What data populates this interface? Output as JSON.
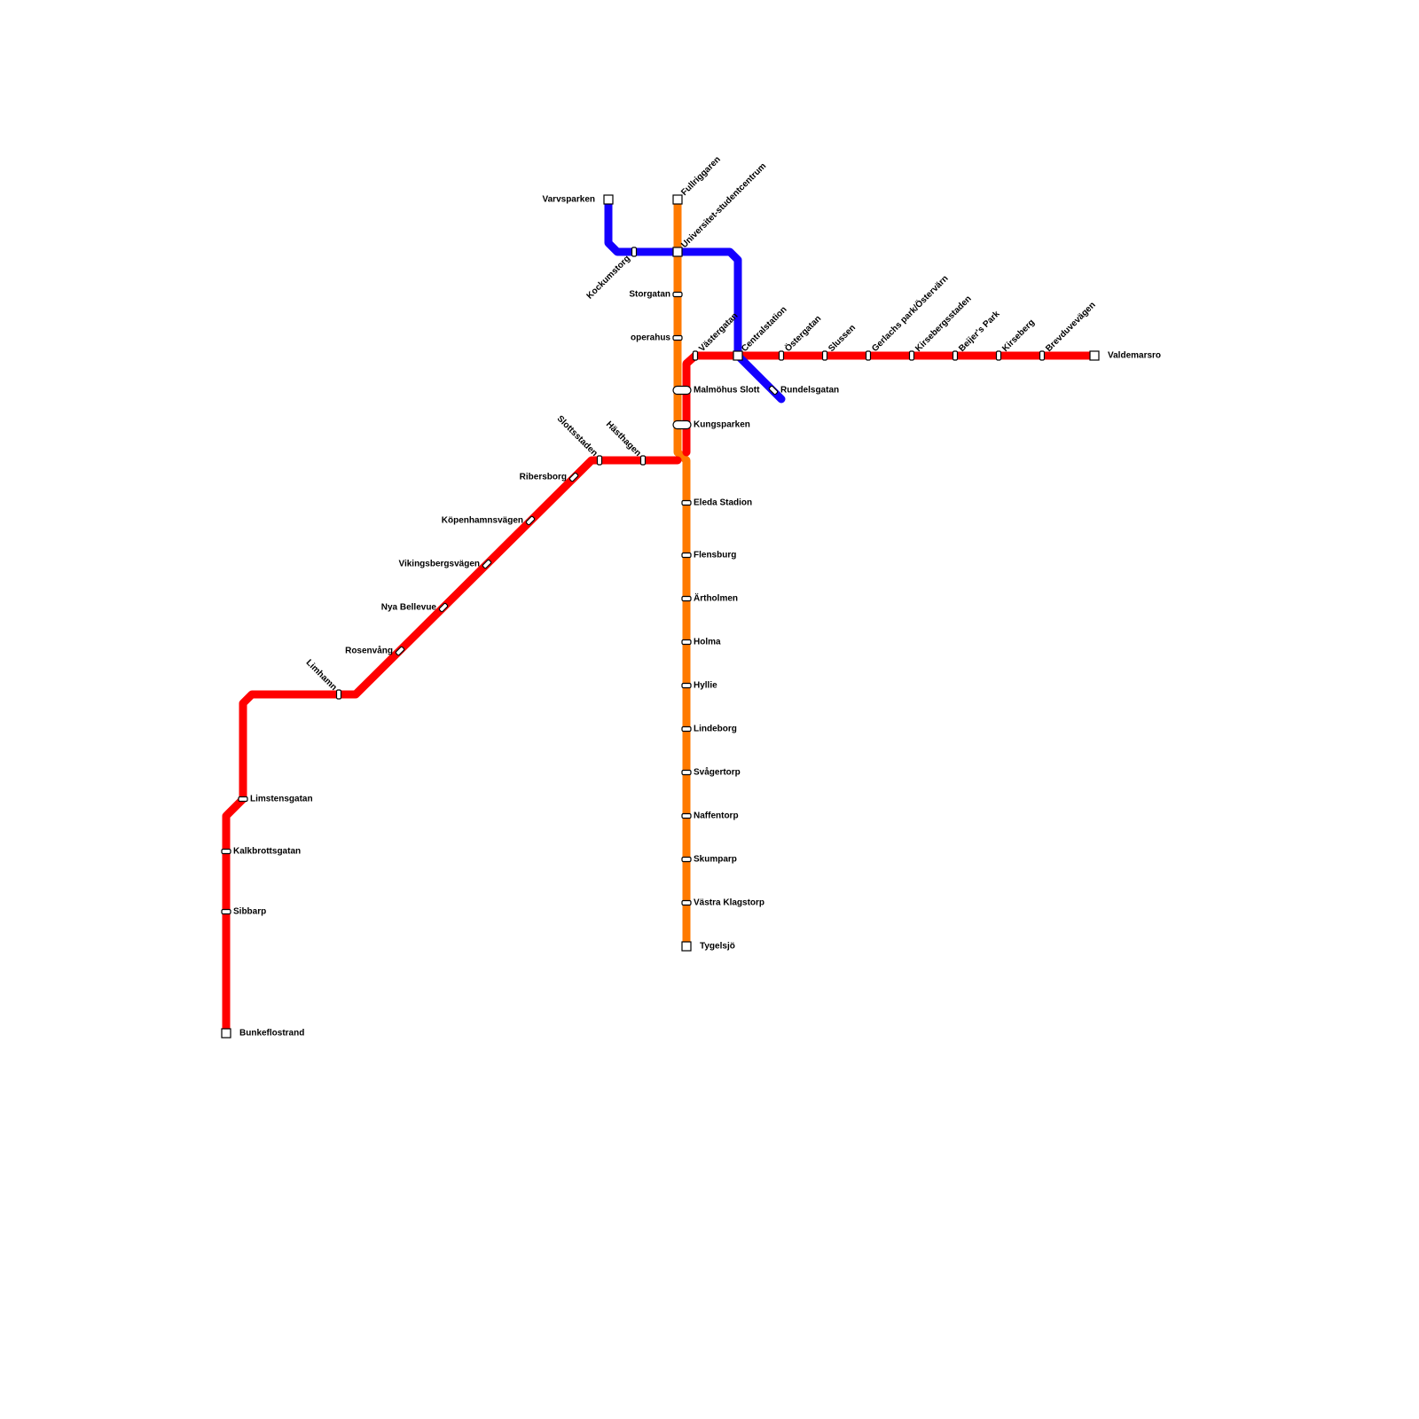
{
  "stations": [
    "Bunkeflostrand",
    "Sibbarp",
    "Kalkbrottsgatan",
    "Limstensgatan",
    "Limhamn",
    "Rosenvång",
    "Nya Bellevue",
    "Vikingsbergsvägen",
    "Köpenhamnsvägen",
    "Ribersborg",
    "Slottsstaden",
    "Hästhagen",
    "Malmöhus Slott",
    "Kungsparken",
    "Västergatan",
    "Centralstation",
    "Östergatan",
    "Slussen",
    "Gerlachs park/Östervärn",
    "Kirsebergsstaden",
    "Beijer's Park",
    "Kirseberg",
    "Brevduvevägen",
    "Valdemarsro",
    "Fullriggaren",
    "Universitet-studentcentrum",
    "Storgatan",
    "operahus",
    "Eleda Stadion",
    "Flensburg",
    "Ärtholmen",
    "Holma",
    "Hyllie",
    "Lindeborg",
    "Svågertorp",
    "Naffentorp",
    "Skumparp",
    "Västra Klagstorp",
    "Tygelsjö",
    "Varvsparken",
    "Kockumstorg",
    "Rundelsgatan"
  ]
}
